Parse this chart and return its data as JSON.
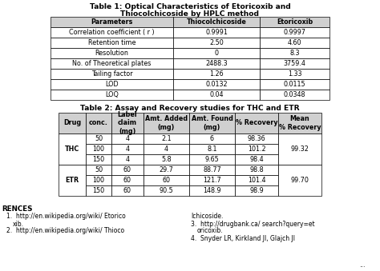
{
  "table1_title_line1": "Table 1: Optical Characteristics of Etoricoxib and",
  "table1_title_line2": "Thiocolchicoside by HPLC method",
  "table1_headers": [
    "Parameters",
    "Thiocolchicoside",
    "Etoricoxib"
  ],
  "table1_rows": [
    [
      "Correlation coefficient ( r )",
      "0.9991",
      "0.9997"
    ],
    [
      "Retention time",
      "2.50",
      "4.60"
    ],
    [
      "Resolution",
      "0",
      "8.3"
    ],
    [
      "No. of Theoretical plates",
      "2488.3",
      "3759.4"
    ],
    [
      "Tailing factor",
      "1.26",
      "1.33"
    ],
    [
      "LOD",
      "0.0132",
      "0.0115"
    ],
    [
      "LOQ",
      "0.04",
      "0.0348"
    ]
  ],
  "table2_title": "Table 2: Assay and Recovery studies for THC and ETR",
  "table2_headers": [
    "Drug",
    "conc.",
    "Label\nclaim\n(mg)",
    "Amt. Added\n(mg)",
    "Amt. Found\n(mg)",
    "% Recovery",
    "Mean\n% Recovery"
  ],
  "table2_col_widths": [
    34,
    32,
    40,
    57,
    57,
    54,
    54
  ],
  "table2_rows": [
    [
      "THC",
      "50",
      "4",
      "2.1",
      "6",
      "98.36",
      "99.32"
    ],
    [
      "THC",
      "100",
      "4",
      "4",
      "8.1",
      "101.2",
      ""
    ],
    [
      "THC",
      "150",
      "4",
      "5.8",
      "9.65",
      "98.4",
      ""
    ],
    [
      "ETR",
      "50",
      "60",
      "29.7",
      "88.77",
      "98.8",
      "99.70"
    ],
    [
      "ETR",
      "100",
      "60",
      "60",
      "121.7",
      "101.4",
      ""
    ],
    [
      "ETR",
      "150",
      "60",
      "90.5",
      "148.9",
      "98.9",
      ""
    ]
  ],
  "drug_groups": [
    [
      "THC",
      0,
      3
    ],
    [
      "ETR",
      3,
      6
    ]
  ],
  "mean_groups": [
    [
      "99.32",
      0,
      3
    ],
    [
      "99.70",
      3,
      6
    ]
  ],
  "bg_color": "#ffffff",
  "header_bg": "#d0d0d0",
  "border_color": "#000000",
  "text_color": "#000000",
  "lw": 0.5
}
